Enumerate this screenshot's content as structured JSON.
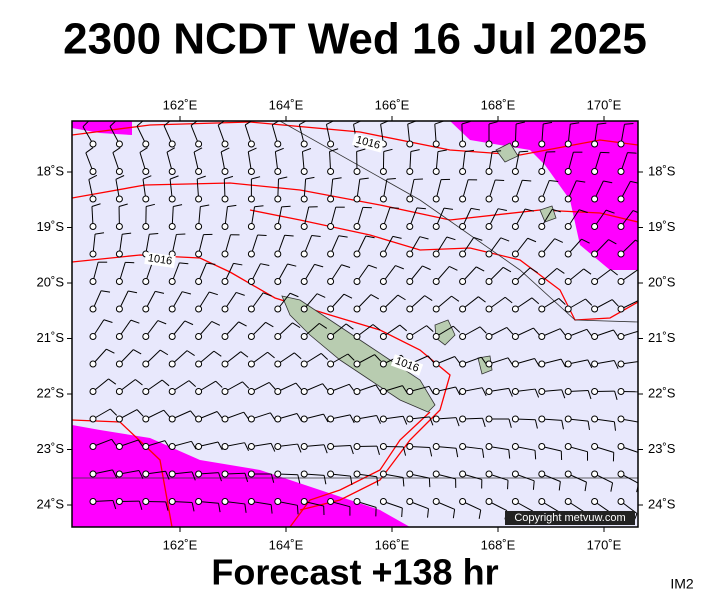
{
  "title": "2300 NCDT Wed 16 Jul 2025",
  "lon_labels": [
    "162˚E",
    "164˚E",
    "166˚E",
    "168˚E",
    "170˚E"
  ],
  "lat_labels": [
    "18˚S",
    "19˚S",
    "20˚S",
    "21˚S",
    "22˚S",
    "23˚S",
    "24˚S"
  ],
  "isobar_labels": [
    "1016",
    "1016",
    "1016"
  ],
  "copyright": "Copyright metvuw.com",
  "forecast": "Forecast +138 hr",
  "corner_label": "IM2"
}
